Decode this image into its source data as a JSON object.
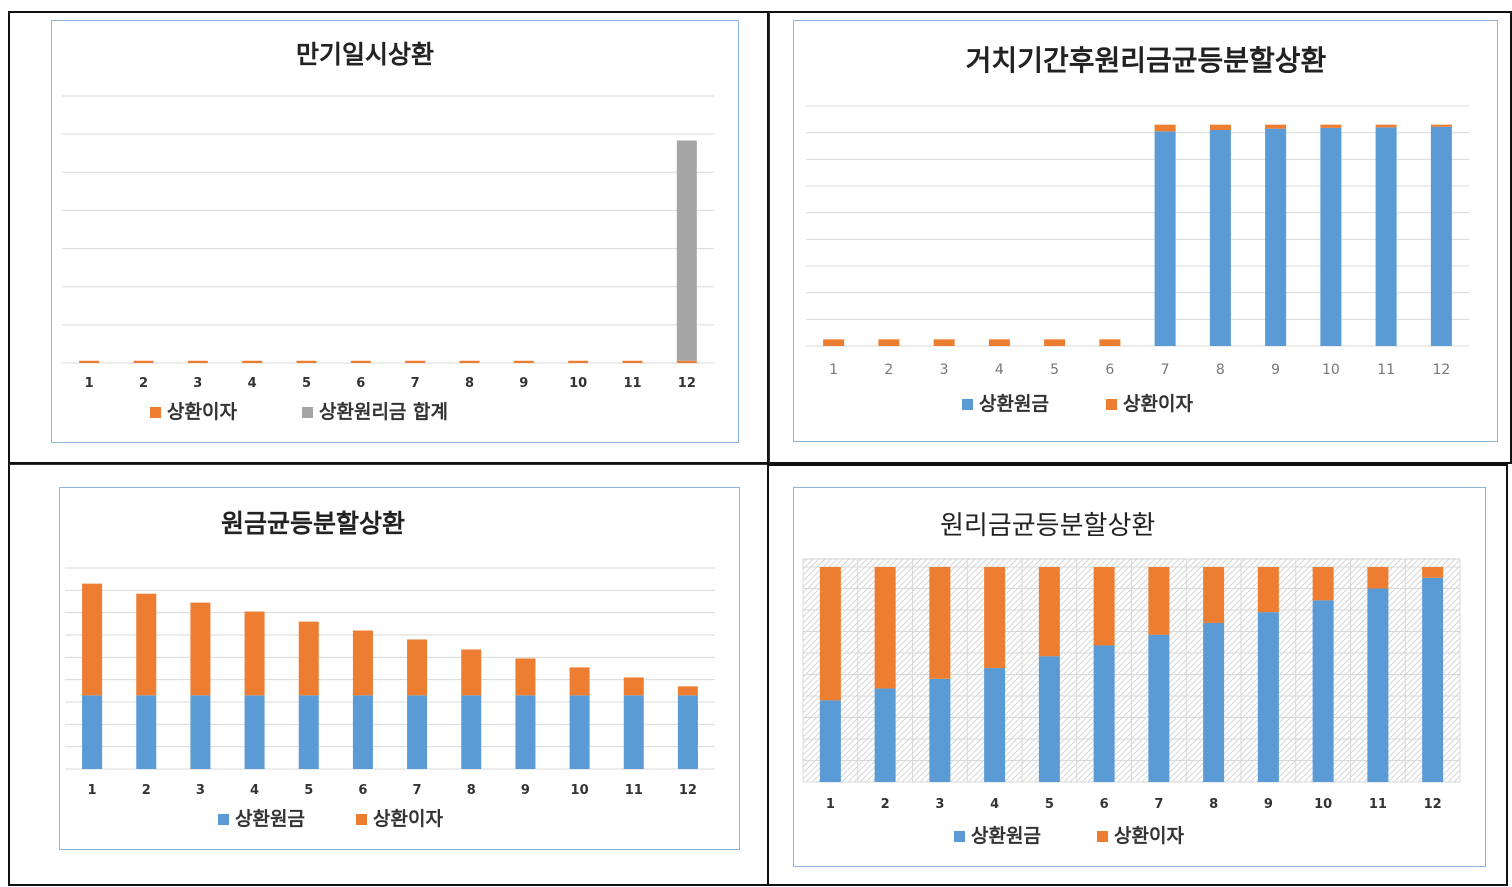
{
  "colors": {
    "principal": "#5b9bd5",
    "interest": "#ed7d31",
    "total": "#a5a5a5",
    "grid": "#d9d9d9"
  },
  "chart_data": [
    {
      "id": "tl",
      "type": "bar",
      "stacked": true,
      "title": "만기일시상환",
      "categories": [
        "1",
        "2",
        "3",
        "4",
        "5",
        "6",
        "7",
        "8",
        "9",
        "10",
        "11",
        "12"
      ],
      "series": [
        {
          "name": "상환이자",
          "color": "#ed7d31",
          "values": [
            0.05,
            0.05,
            0.05,
            0.05,
            0.05,
            0.05,
            0.05,
            0.05,
            0.05,
            0.05,
            0.05,
            0.05
          ]
        },
        {
          "name": "상환원리금 합계",
          "color": "#a5a5a5",
          "values": [
            0,
            0,
            0,
            0,
            0,
            0,
            0,
            0,
            0,
            0,
            0,
            4.95
          ]
        }
      ],
      "ylim": [
        0,
        6
      ],
      "grid": true,
      "legend": "bottom"
    },
    {
      "id": "tr",
      "type": "bar",
      "stacked": true,
      "title": "거치기간후원리금균등분할상환",
      "categories": [
        "1",
        "2",
        "3",
        "4",
        "5",
        "6",
        "7",
        "8",
        "9",
        "10",
        "11",
        "12"
      ],
      "series": [
        {
          "name": "상환원금",
          "color": "#5b9bd5",
          "values": [
            0,
            0,
            0,
            0,
            0,
            0,
            8.05,
            8.1,
            8.15,
            8.18,
            8.2,
            8.22
          ]
        },
        {
          "name": "상환이자",
          "color": "#ed7d31",
          "values": [
            0.25,
            0.25,
            0.25,
            0.25,
            0.25,
            0.25,
            0.25,
            0.2,
            0.15,
            0.12,
            0.1,
            0.08
          ]
        }
      ],
      "ylim": [
        0,
        9
      ],
      "grid": true,
      "legend": "bottom"
    },
    {
      "id": "bl",
      "type": "bar",
      "stacked": true,
      "title": "원금균등분할상환",
      "categories": [
        "1",
        "2",
        "3",
        "4",
        "5",
        "6",
        "7",
        "8",
        "9",
        "10",
        "11",
        "12"
      ],
      "series": [
        {
          "name": "상환원금",
          "color": "#5b9bd5",
          "values": [
            3.3,
            3.3,
            3.3,
            3.3,
            3.3,
            3.3,
            3.3,
            3.3,
            3.3,
            3.3,
            3.3,
            3.3
          ]
        },
        {
          "name": "상환이자",
          "color": "#ed7d31",
          "values": [
            5,
            4.55,
            4.15,
            3.75,
            3.3,
            2.9,
            2.5,
            2.05,
            1.65,
            1.25,
            0.8,
            0.4
          ]
        }
      ],
      "ylim": [
        0,
        9
      ],
      "grid": true,
      "legend": "bottom"
    },
    {
      "id": "br",
      "type": "bar",
      "stacked": true,
      "title": "원리금균등분할상환",
      "categories": [
        "1",
        "2",
        "3",
        "4",
        "5",
        "6",
        "7",
        "8",
        "9",
        "10",
        "11",
        "12"
      ],
      "series": [
        {
          "name": "상환원금",
          "color": "#5b9bd5",
          "values": [
            3.8,
            4.35,
            4.8,
            5.3,
            5.85,
            6.35,
            6.85,
            7.4,
            7.9,
            8.45,
            9,
            9.5
          ]
        },
        {
          "name": "상환이자",
          "color": "#ed7d31",
          "values": [
            6.2,
            5.65,
            5.2,
            4.7,
            4.15,
            3.65,
            3.15,
            2.6,
            2.1,
            1.55,
            1,
            0.5
          ]
        }
      ],
      "ylim": [
        0,
        10
      ],
      "grid": true,
      "hatched_background": true,
      "legend": "bottom"
    }
  ]
}
